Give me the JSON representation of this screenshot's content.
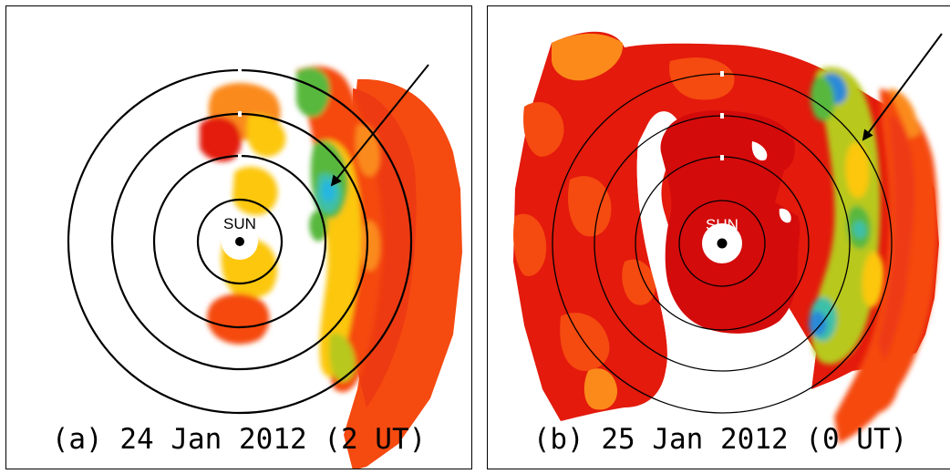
{
  "panels": [
    {
      "id": "a",
      "caption": "(a) 24 Jan 2012 (2 UT)",
      "sun_label": "SUN",
      "arrow_note": "arrow pointing to low-velocity (blue) region"
    },
    {
      "id": "b",
      "caption": "(b) 25 Jan 2012 (0 UT)",
      "sun_label": "SUN",
      "arrow_note": "arrow pointing to low-velocity (blue) region"
    }
  ],
  "colors": {
    "red": "#e31a0c",
    "dark_red": "#d40b0b",
    "orange_red": "#f54a10",
    "orange": "#fb8a1a",
    "yellow": "#fcc70a",
    "yellow_green": "#b8c81e",
    "green": "#58b83c",
    "teal": "#3cc0a8",
    "cyan": "#27b6df",
    "blue": "#2a8ad8"
  }
}
